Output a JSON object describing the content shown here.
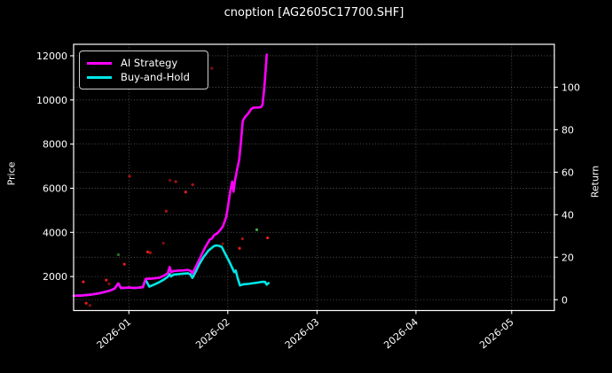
{
  "title": "cnoption [AG2605C17700.SHF]",
  "axes": {
    "left_label": "Price",
    "right_label": "Return"
  },
  "colors": {
    "background": "#000000",
    "frame": "#ffffff",
    "grid": "rgba(255,255,255,0.38)",
    "tick_text": "#ffffff",
    "ai_strategy": "#ff00ff",
    "buy_and_hold": "#00e6e6"
  },
  "legend": {
    "items": [
      {
        "label": "AI Strategy",
        "color": "#ff00ff"
      },
      {
        "label": "Buy-and-Hold",
        "color": "#00e6e6"
      }
    ]
  },
  "chart_data": {
    "type": "line",
    "title": "cnoption [AG2605C17700.SHF]",
    "ylabel_left": "Price",
    "ylabel_right": "Return",
    "x_unit": "days since 2026-01-01",
    "x_range": [
      -17.33,
      133.4
    ],
    "price_range": [
      460,
      12520
    ],
    "return_range": [
      -5.1,
      120.2
    ],
    "x_ticks": [
      {
        "day": 0,
        "label": "2026-01"
      },
      {
        "day": 31,
        "label": "2026-02"
      },
      {
        "day": 59,
        "label": "2026-03"
      },
      {
        "day": 90,
        "label": "2026-04"
      },
      {
        "day": 120,
        "label": "2026-05"
      }
    ],
    "price_ticks": [
      2000,
      4000,
      6000,
      8000,
      10000,
      12000
    ],
    "return_ticks": [
      0,
      20,
      40,
      60,
      80,
      100
    ],
    "grid": "dotted horizontal for both y-axes, dotted vertical at month ticks",
    "legend_position": "upper left",
    "series": [
      {
        "name": "AI Strategy",
        "color": "#ff00ff",
        "axis": "price",
        "points": [
          [
            -17.3,
            1130
          ],
          [
            -15,
            1140
          ],
          [
            -12,
            1180
          ],
          [
            -9,
            1250
          ],
          [
            -6,
            1360
          ],
          [
            -4.5,
            1450
          ],
          [
            -3.3,
            1690
          ],
          [
            -2.5,
            1480
          ],
          [
            -1,
            1490
          ],
          [
            0,
            1500
          ],
          [
            1,
            1490
          ],
          [
            2,
            1485
          ],
          [
            3,
            1495
          ],
          [
            4.4,
            1520
          ],
          [
            5.2,
            1880
          ],
          [
            5.8,
            1910
          ],
          [
            7,
            1900
          ],
          [
            8.5,
            1930
          ],
          [
            9.6,
            1950
          ],
          [
            11,
            2040
          ],
          [
            12.2,
            2150
          ],
          [
            12.8,
            2430
          ],
          [
            13.3,
            2190
          ],
          [
            14,
            2250
          ],
          [
            15.5,
            2270
          ],
          [
            17,
            2280
          ],
          [
            18.5,
            2300
          ],
          [
            19.3,
            2260
          ],
          [
            19.9,
            2140
          ],
          [
            21,
            2450
          ],
          [
            22,
            2740
          ],
          [
            23,
            3050
          ],
          [
            24,
            3340
          ],
          [
            25.4,
            3680
          ],
          [
            26,
            3720
          ],
          [
            26.8,
            3890
          ],
          [
            27.6,
            3940
          ],
          [
            28.6,
            4100
          ],
          [
            29.5,
            4280
          ],
          [
            30.5,
            4690
          ],
          [
            31,
            5100
          ],
          [
            31.8,
            5900
          ],
          [
            32.4,
            6300
          ],
          [
            32.8,
            5840
          ],
          [
            33.2,
            6300
          ],
          [
            34,
            6900
          ],
          [
            34.6,
            7300
          ],
          [
            35.2,
            8200
          ],
          [
            35.7,
            9050
          ],
          [
            36.3,
            9200
          ],
          [
            37.5,
            9400
          ],
          [
            38.3,
            9580
          ],
          [
            39,
            9650
          ],
          [
            40.5,
            9660
          ],
          [
            41.5,
            9680
          ],
          [
            41.9,
            9790
          ],
          [
            42.3,
            10300
          ],
          [
            42.7,
            11000
          ],
          [
            43.2,
            12050
          ]
        ]
      },
      {
        "name": "Buy-and-Hold",
        "color": "#00e6e6",
        "axis": "price",
        "points": [
          [
            -17.3,
            1130
          ],
          [
            -15,
            1140
          ],
          [
            -12,
            1180
          ],
          [
            -9,
            1250
          ],
          [
            -6,
            1360
          ],
          [
            -4.5,
            1450
          ],
          [
            -3.3,
            1690
          ],
          [
            -2.5,
            1480
          ],
          [
            -1,
            1490
          ],
          [
            0,
            1500
          ],
          [
            1,
            1490
          ],
          [
            2,
            1485
          ],
          [
            3,
            1495
          ],
          [
            4.4,
            1520
          ],
          [
            5.2,
            1860
          ],
          [
            6.4,
            1545
          ],
          [
            8,
            1640
          ],
          [
            9.6,
            1750
          ],
          [
            11,
            1870
          ],
          [
            12.2,
            1990
          ],
          [
            12.8,
            2110
          ],
          [
            13.2,
            2000
          ],
          [
            14,
            2090
          ],
          [
            15.5,
            2110
          ],
          [
            17,
            2130
          ],
          [
            18.5,
            2150
          ],
          [
            19.3,
            2090
          ],
          [
            19.9,
            1940
          ],
          [
            21,
            2230
          ],
          [
            22,
            2540
          ],
          [
            23.5,
            2900
          ],
          [
            25,
            3180
          ],
          [
            26.5,
            3360
          ],
          [
            27.3,
            3410
          ],
          [
            28.3,
            3390
          ],
          [
            29.1,
            3340
          ],
          [
            30.3,
            3000
          ],
          [
            31.5,
            2670
          ],
          [
            32.3,
            2420
          ],
          [
            33,
            2200
          ],
          [
            33.5,
            2270
          ],
          [
            34,
            1980
          ],
          [
            34.8,
            1600
          ],
          [
            36,
            1650
          ],
          [
            37.5,
            1670
          ],
          [
            39,
            1700
          ],
          [
            40.5,
            1730
          ],
          [
            41.8,
            1760
          ],
          [
            42.7,
            1755
          ],
          [
            43.2,
            1630
          ],
          [
            43.8,
            1705
          ]
        ]
      }
    ],
    "scatter_dots": [
      {
        "day": -14.3,
        "price": 1760,
        "color": "#e51c1c"
      },
      {
        "day": -13.4,
        "price": 790,
        "color": "#e51c1c"
      },
      {
        "day": -12.2,
        "price": 690,
        "color": "#7f1010"
      },
      {
        "day": -7.1,
        "price": 1840,
        "color": "#e51c1c"
      },
      {
        "day": -6.2,
        "price": 1670,
        "color": "#7f1010"
      },
      {
        "day": -3.3,
        "price": 2990,
        "color": "#2a6e2a"
      },
      {
        "day": -1.4,
        "price": 2560,
        "color": "#e51c1c"
      },
      {
        "day": 0.2,
        "price": 6540,
        "color": "#a81414"
      },
      {
        "day": 5.9,
        "price": 3115,
        "color": "#e51c1c"
      },
      {
        "day": 6.7,
        "price": 3080,
        "color": "#a81414"
      },
      {
        "day": 10.8,
        "price": 3510,
        "color": "#7f1010"
      },
      {
        "day": 11.7,
        "price": 4960,
        "color": "#a81414"
      },
      {
        "day": 12.9,
        "price": 6360,
        "color": "#7f1010"
      },
      {
        "day": 14.7,
        "price": 6300,
        "color": "#a81414"
      },
      {
        "day": 17.8,
        "price": 5830,
        "color": "#e51c1c"
      },
      {
        "day": 20,
        "price": 6160,
        "color": "#a81414"
      },
      {
        "day": 26,
        "price": 11430,
        "color": "#7f1010"
      },
      {
        "day": 29.4,
        "price": 3480,
        "color": "#7f1010"
      },
      {
        "day": 34.7,
        "price": 3280,
        "color": "#e51c1c"
      },
      {
        "day": 35.6,
        "price": 3710,
        "color": "#a81414"
      },
      {
        "day": 40.1,
        "price": 4120,
        "color": "#3fae3f"
      },
      {
        "day": 43.5,
        "price": 3750,
        "color": "#e51c1c"
      }
    ]
  }
}
